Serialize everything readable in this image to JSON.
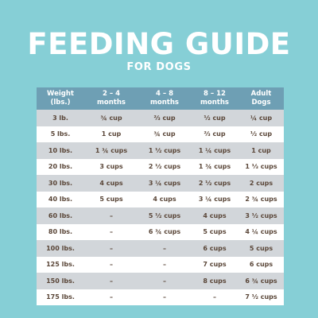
{
  "title": "FEEDING GUIDE",
  "subtitle": "FOR DOGS",
  "colors": {
    "background": "#86cfd6",
    "header": "#6e9fb4",
    "row_shaded": "#d2d6da",
    "row_plain": "#ffffff",
    "cell_text": "#5a4638"
  },
  "table": {
    "headers": [
      "Weight\n(lbs.)",
      "2 – 4\nmonths",
      "4 – 8\nmonths",
      "8 – 12\nmonths",
      "Adult\nDogs"
    ],
    "rows": [
      [
        "3 lb.",
        "¾ cup",
        "⅔ cup",
        "½ cup",
        "¼ cup"
      ],
      [
        "5 lbs.",
        "1 cup",
        "¾ cup",
        "⅔ cup",
        "½ cup"
      ],
      [
        "10 lbs.",
        "1 ¾ cups",
        "1 ½ cups",
        "1 ¼ cups",
        "1 cup"
      ],
      [
        "20 lbs.",
        "3 cups",
        "2 ½ cups",
        "1 ¾ cups",
        "1 ⅓ cups"
      ],
      [
        "30 lbs.",
        "4 cups",
        "3 ¼ cups",
        "2 ½ cups",
        "2 cups"
      ],
      [
        "40 lbs.",
        "5 cups",
        "4 cups",
        "3 ¼ cups",
        "2 ¾ cups"
      ],
      [
        "60 lbs.",
        "–",
        "5 ½ cups",
        "4 cups",
        "3 ½ cups"
      ],
      [
        "80 lbs.",
        "–",
        "6 ¾ cups",
        "5 cups",
        "4 ¼ cups"
      ],
      [
        "100 lbs.",
        "–",
        "–",
        "6 cups",
        "5 cups"
      ],
      [
        "125 lbs.",
        "–",
        "–",
        "7 cups",
        "6 cups"
      ],
      [
        "150 lbs.",
        "–",
        "–",
        "8 cups",
        "6 ¾ cups"
      ],
      [
        "175 lbs.",
        "–",
        "–",
        "–",
        "7 ½ cups"
      ]
    ]
  }
}
